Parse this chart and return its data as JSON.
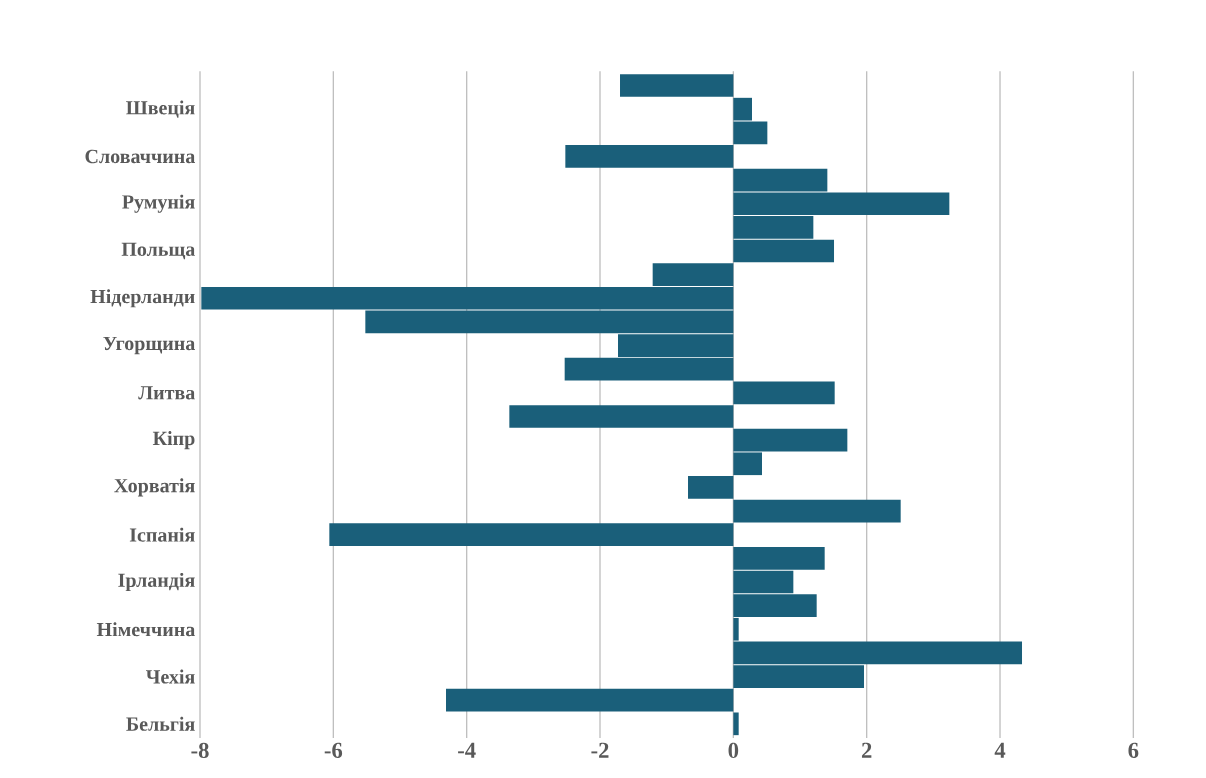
{
  "chart_data": {
    "type": "bar",
    "orientation": "horizontal",
    "categories": [
      null,
      "Швеція",
      null,
      "Словаччина",
      null,
      "Румунія",
      null,
      "Польща",
      null,
      "Нідерланди",
      null,
      "Угорщина",
      null,
      "Литва",
      null,
      "Кіпр",
      null,
      "Хорватія",
      null,
      "Іспанія",
      null,
      "Ірландія",
      null,
      "Німеччина",
      null,
      "Чехія",
      null,
      "Бельгія"
    ],
    "values": [
      -1.7,
      0.28,
      0.51,
      -2.52,
      1.41,
      3.24,
      1.2,
      1.51,
      -1.21,
      -7.98,
      -5.52,
      -1.73,
      -2.53,
      1.52,
      -3.36,
      1.71,
      0.43,
      -0.68,
      2.51,
      -6.06,
      1.37,
      0.9,
      1.25,
      0.08,
      4.33,
      1.96,
      -4.31,
      0.08
    ],
    "color": "#1a5f7a",
    "xlim": [
      -8,
      6
    ],
    "xticks": [
      -8,
      -6,
      -4,
      -2,
      0,
      2,
      4,
      6
    ],
    "grid": "x"
  }
}
